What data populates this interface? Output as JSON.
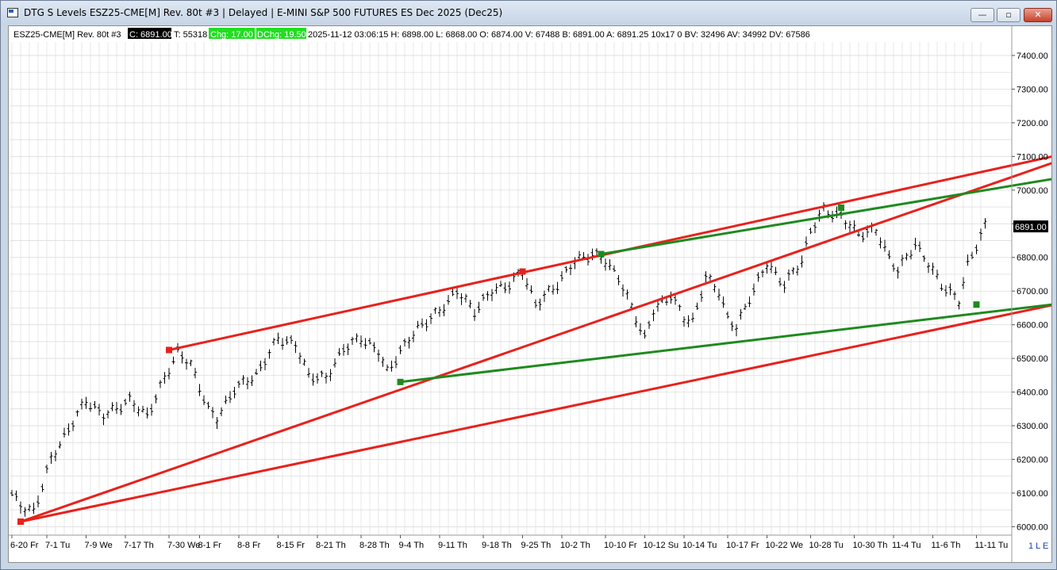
{
  "window": {
    "title": "DTG S Levels ESZ25-CME[M]  Rev. 80t #3 | Delayed | E-MINI S&P 500 FUTURES ES Dec 2025 (Dec25)",
    "buttons": {
      "minimize": "—",
      "maximize": "▫",
      "close": "✕"
    }
  },
  "header": {
    "symbol": "ESZ25-CME[M]  Rev. 80t #3",
    "close": "C: 6891.00",
    "ticks": "T: 55318",
    "chg": "Chg: 17.00",
    "dchg": "DChg: 19.50",
    "details": "2025-11-12 03:06:15 H: 6898.00  L: 6868.00  O: 6874.00  V: 67488  B: 6891.00  A: 6891.25  10x17  0  BV: 32496  AV: 34992  DV: 67586"
  },
  "colors": {
    "channel": "#e8211c",
    "trend": "#1e8a1e",
    "bars": "#000000",
    "grid": "#d8d8d8",
    "price_bg": "#000000"
  },
  "chart_data": {
    "type": "bar",
    "series_style": "ohlc-range-bars",
    "ylim": [
      5975,
      7440
    ],
    "y_ticks": [
      "6000.00",
      "6100.00",
      "6200.00",
      "6300.00",
      "6400.00",
      "6500.00",
      "6600.00",
      "6700.00",
      "6800.00",
      "6900.00",
      "7000.00",
      "7100.00",
      "7200.00",
      "7300.00",
      "7400.00"
    ],
    "last_price": "6891.00",
    "x_ticks": [
      "6-20 Fr",
      "7-1 Tu",
      "7-9 We",
      "7-17 Th",
      "7-30 We",
      "8-1 Fr",
      "8-8 Fr",
      "8-15 Fr",
      "8-21 Th",
      "8-28 Th",
      "9-4 Th",
      "9-11 Th",
      "9-18 Th",
      "9-25 Th",
      "10-2 Th",
      "10-10 Fr",
      "10-12 Su",
      "10-14 Tu",
      "10-17 Fr",
      "10-22 We",
      "10-28 Tu",
      "10-30 Th",
      "11-4 Tu",
      "11-6 Th",
      "11-11 Tu"
    ],
    "x_tick_index": [
      0,
      8,
      17,
      26,
      36,
      43,
      52,
      61,
      70,
      80,
      89,
      98,
      108,
      117,
      126,
      136,
      145,
      154,
      164,
      173,
      183,
      193,
      202,
      211,
      221
    ],
    "n_bars": 224,
    "anchors": [
      [
        0,
        6100
      ],
      [
        2,
        6060
      ],
      [
        5,
        6045
      ],
      [
        9,
        6200
      ],
      [
        13,
        6290
      ],
      [
        17,
        6375
      ],
      [
        21,
        6330
      ],
      [
        27,
        6375
      ],
      [
        31,
        6330
      ],
      [
        35,
        6440
      ],
      [
        38,
        6520
      ],
      [
        41,
        6480
      ],
      [
        45,
        6350
      ],
      [
        47,
        6320
      ],
      [
        51,
        6410
      ],
      [
        56,
        6450
      ],
      [
        61,
        6560
      ],
      [
        65,
        6540
      ],
      [
        68,
        6450
      ],
      [
        72,
        6440
      ],
      [
        76,
        6530
      ],
      [
        80,
        6560
      ],
      [
        84,
        6520
      ],
      [
        86,
        6460
      ],
      [
        89,
        6520
      ],
      [
        93,
        6590
      ],
      [
        98,
        6640
      ],
      [
        102,
        6700
      ],
      [
        106,
        6640
      ],
      [
        110,
        6700
      ],
      [
        114,
        6720
      ],
      [
        117,
        6760
      ],
      [
        120,
        6660
      ],
      [
        125,
        6720
      ],
      [
        129,
        6790
      ],
      [
        133,
        6810
      ],
      [
        136,
        6790
      ],
      [
        139,
        6740
      ],
      [
        143,
        6620
      ],
      [
        145,
        6560
      ],
      [
        147,
        6640
      ],
      [
        151,
        6690
      ],
      [
        154,
        6620
      ],
      [
        156,
        6610
      ],
      [
        159,
        6740
      ],
      [
        162,
        6700
      ],
      [
        164,
        6620
      ],
      [
        166,
        6590
      ],
      [
        169,
        6680
      ],
      [
        173,
        6780
      ],
      [
        177,
        6720
      ],
      [
        181,
        6790
      ],
      [
        183,
        6880
      ],
      [
        186,
        6940
      ],
      [
        190,
        6920
      ],
      [
        194,
        6870
      ],
      [
        198,
        6880
      ],
      [
        201,
        6800
      ],
      [
        203,
        6760
      ],
      [
        207,
        6840
      ],
      [
        210,
        6780
      ],
      [
        213,
        6720
      ],
      [
        217,
        6670
      ],
      [
        219,
        6780
      ],
      [
        223,
        6891
      ]
    ],
    "lines": [
      {
        "color": "channel",
        "from": [
          2,
          6015
        ],
        "to": [
          250,
          7133
        ]
      },
      {
        "color": "channel",
        "from": [
          36,
          6525
        ],
        "to": [
          250,
          7133
        ]
      },
      {
        "color": "channel",
        "from": [
          2,
          6015
        ],
        "to": [
          250,
          6690
        ]
      },
      {
        "color": "trend",
        "from": [
          89,
          6430
        ],
        "to": [
          250,
          6678
        ]
      },
      {
        "color": "trend",
        "from": [
          135,
          6810
        ],
        "to": [
          250,
          7058
        ]
      }
    ],
    "markers": [
      {
        "color": "channel",
        "at": [
          2,
          6015
        ]
      },
      {
        "color": "channel",
        "at": [
          36,
          6525
        ]
      },
      {
        "color": "channel",
        "at": [
          117,
          6758
        ]
      },
      {
        "color": "trend",
        "at": [
          89,
          6430
        ]
      },
      {
        "color": "trend",
        "at": [
          135,
          6810
        ]
      },
      {
        "color": "trend",
        "at": [
          190,
          6948
        ]
      },
      {
        "color": "trend",
        "at": [
          221,
          6660
        ]
      }
    ],
    "corner_label": "1 L E"
  }
}
